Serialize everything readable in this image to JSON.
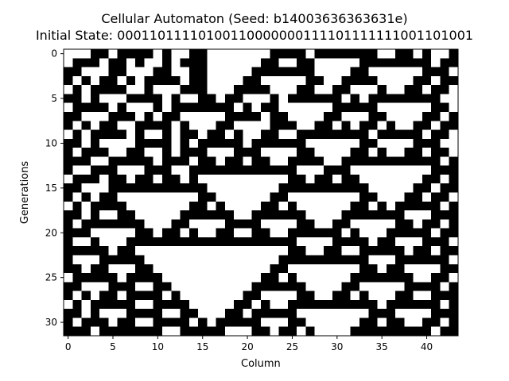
{
  "chart_data": {
    "type": "heatmap",
    "title": "Cellular Automaton (Seed: b14003636363631e)",
    "subtitle": "Initial State: 00011011110100110000000111101111111001101001",
    "xlabel": "Column",
    "ylabel": "Generations",
    "xlim": [
      -0.5,
      43.5
    ],
    "ylim": [
      31.5,
      -0.5
    ],
    "xticks": [
      0,
      5,
      10,
      15,
      20,
      25,
      30,
      35,
      40
    ],
    "yticks": [
      0,
      5,
      10,
      15,
      20,
      25,
      30
    ],
    "colors": {
      "alive": "#000000",
      "dead": "#ffffff"
    },
    "grid": false,
    "rows": [
      "00011011110100110000000111101111111001101001",
      "01110110100101110000001100110000011111111011",
      "11000110001100110000011111110000110000001110",
      "10101101011110110000110000011001111000011011",
      "01011110010001110001111000110011000100110110",
      "11010001111010011011000101111110101111111100",
      "01111010001011111110101100000011111000000110",
      "11000111010110000011110110000110001100001101",
      "10101100111101000110000111001101011010011011",
      "01011110100101101101001100111111110111110110",
      "11010000111101011111011111100000011000011100",
      "10111001100101110001110000110000110100110110",
      "11100111110111011011011001111001111111111101",
      "10011100011100111111111111000111000000000111",
      "01110110110110100000000001101101100000001101",
      "11000111111111110000000011111111110000011011",
      "10101100000000011000000110000000011000110110",
      "01011110000000110100001101000000110101111101",
      "11010011000001111110011111100001111111000111",
      "10111111100011000011110000110011000001101101",
      "11100000110110100110011001111110100011111011",
      "10010001111111111111111111000011110110001110",
      "11111011000000000000000001100110011111011011",
      "10001111100000000000000011111111110001111110",
      "11011000110000000000000110000000011011000011",
      "01111101111000000000001101000000111111100110",
      "11000111001100000000011111100001100000111101",
      "10101101111010000000110000110011010001100111",
      "01011111001111000001101001111111111011111101",
      "11010001111001100011011111000000001110000111",
      "10111011001111010111110001100000011011001101",
      "11101111111001111100011011010000111111111011"
    ]
  }
}
